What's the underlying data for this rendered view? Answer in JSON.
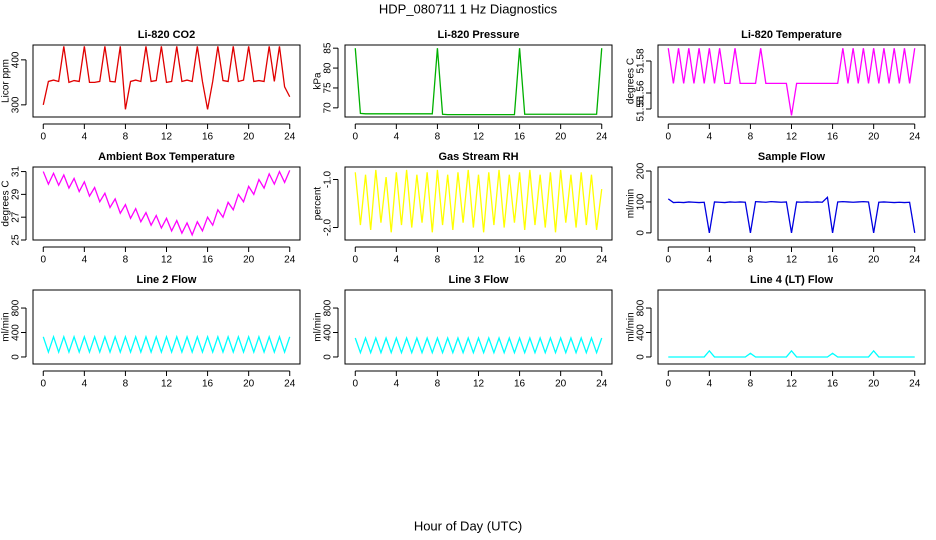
{
  "title": "HDP_080711  1 Hz Diagnostics",
  "x_label": "Hour of Day (UTC)",
  "chart_data": [
    {
      "type": "line",
      "title": "Li-820 CO2",
      "y_label": "Licor ppm",
      "x": [
        0,
        0.5,
        1,
        1.5,
        2,
        2.5,
        3,
        3.5,
        4,
        4.5,
        5,
        5.5,
        6,
        6.5,
        7,
        7.5,
        8,
        8.5,
        9,
        9.5,
        10,
        10.5,
        11,
        11.5,
        12,
        12.5,
        13,
        13.5,
        14,
        14.5,
        15,
        15.5,
        16,
        16.5,
        17,
        17.5,
        18,
        18.5,
        19,
        19.5,
        20,
        20.5,
        21,
        21.5,
        22,
        22.5,
        23,
        23.5,
        24
      ],
      "series": [
        {
          "color": "#e00000",
          "values": [
            300,
            352,
            355,
            352,
            430,
            350,
            354,
            352,
            430,
            350,
            350,
            352,
            430,
            352,
            351,
            430,
            290,
            352,
            355,
            352,
            430,
            352,
            354,
            430,
            350,
            352,
            430,
            352,
            355,
            352,
            430,
            352,
            290,
            352,
            430,
            354,
            352,
            430,
            352,
            355,
            430,
            352,
            354,
            352,
            430,
            352,
            430,
            340,
            318
          ]
        }
      ],
      "xlim": [
        -1,
        25
      ],
      "xticks": [
        0,
        4,
        8,
        12,
        16,
        20,
        24
      ],
      "ylim": [
        273,
        433
      ],
      "yticks": [
        300,
        400
      ]
    },
    {
      "type": "line",
      "title": "Li-820 Pressure",
      "y_label": "kPa",
      "x": [
        0,
        0.5,
        1,
        1.5,
        2,
        2.5,
        3,
        3.5,
        4,
        4.5,
        5,
        5.5,
        6,
        6.5,
        7,
        7.5,
        8,
        8.5,
        9,
        9.5,
        10,
        10.5,
        11,
        11.5,
        12,
        12.5,
        13,
        13.5,
        14,
        14.5,
        15,
        15.5,
        16,
        16.5,
        17,
        17.5,
        18,
        18.5,
        19,
        19.5,
        20,
        20.5,
        21,
        21.5,
        22,
        22.5,
        23,
        23.5,
        24
      ],
      "series": [
        {
          "color": "#00b000",
          "values": [
            85,
            68.6,
            68.5,
            68.5,
            68.5,
            68.5,
            68.5,
            68.5,
            68.5,
            68.5,
            68.5,
            68.5,
            68.5,
            68.5,
            68.5,
            68.5,
            85,
            68.4,
            68.3,
            68.3,
            68.3,
            68.3,
            68.3,
            68.3,
            68.3,
            68.3,
            68.3,
            68.3,
            68.3,
            68.3,
            68.3,
            68.3,
            85,
            68.4,
            68.4,
            68.4,
            68.4,
            68.4,
            68.4,
            68.4,
            68.4,
            68.4,
            68.4,
            68.4,
            68.4,
            68.4,
            68.4,
            68.4,
            85
          ]
        }
      ],
      "xlim": [
        -1,
        25
      ],
      "xticks": [
        0,
        4,
        8,
        12,
        16,
        20,
        24
      ],
      "ylim": [
        67.7,
        85.8
      ],
      "yticks": [
        70,
        75,
        80,
        85
      ]
    },
    {
      "type": "line",
      "title": "Li-820 Temperature",
      "y_label": "degrees C",
      "x": [
        0,
        0.5,
        1,
        1.5,
        2,
        2.5,
        3,
        3.5,
        4,
        4.5,
        5,
        5.5,
        6,
        6.5,
        7,
        7.5,
        8,
        8.5,
        9,
        9.5,
        10,
        10.5,
        11,
        11.5,
        12,
        12.5,
        13,
        13.5,
        14,
        14.5,
        15,
        15.5,
        16,
        16.5,
        17,
        17.5,
        18,
        18.5,
        19,
        19.5,
        20,
        20.5,
        21,
        21.5,
        22,
        22.5,
        23,
        23.5,
        24
      ],
      "series": [
        {
          "color": "#ff00ff",
          "values": [
            51.588,
            51.566,
            51.588,
            51.566,
            51.588,
            51.566,
            51.588,
            51.566,
            51.588,
            51.566,
            51.588,
            51.566,
            51.566,
            51.588,
            51.566,
            51.566,
            51.566,
            51.566,
            51.588,
            51.566,
            51.566,
            51.566,
            51.566,
            51.566,
            51.546,
            51.566,
            51.566,
            51.566,
            51.566,
            51.566,
            51.566,
            51.566,
            51.566,
            51.566,
            51.588,
            51.566,
            51.588,
            51.566,
            51.588,
            51.566,
            51.588,
            51.566,
            51.588,
            51.566,
            51.588,
            51.566,
            51.588,
            51.566,
            51.588
          ]
        }
      ],
      "xlim": [
        -1,
        25
      ],
      "xticks": [
        0,
        4,
        8,
        12,
        16,
        20,
        24
      ],
      "ylim": [
        51.545,
        51.59
      ],
      "yticks": [
        51.55,
        51.56,
        51.58
      ]
    },
    {
      "type": "line",
      "title": "Ambient Box Temperature",
      "y_label": "degrees C",
      "x": [
        0,
        0.5,
        1,
        1.5,
        2,
        2.5,
        3,
        3.5,
        4,
        4.5,
        5,
        5.5,
        6,
        6.5,
        7,
        7.5,
        8,
        8.5,
        9,
        9.5,
        10,
        10.5,
        11,
        11.5,
        12,
        12.5,
        13,
        13.5,
        14,
        14.5,
        15,
        15.5,
        16,
        16.5,
        17,
        17.5,
        18,
        18.5,
        19,
        19.5,
        20,
        20.5,
        21,
        21.5,
        22,
        22.5,
        23,
        23.5,
        24
      ],
      "series": [
        {
          "color": "#ff00ff",
          "values": [
            31.0,
            29.9,
            30.85,
            29.8,
            30.7,
            29.55,
            30.4,
            29.25,
            30.1,
            28.85,
            29.6,
            28.35,
            29.1,
            27.85,
            28.6,
            27.35,
            28.1,
            26.9,
            27.75,
            26.6,
            27.4,
            26.3,
            27.15,
            26.05,
            26.9,
            25.8,
            26.7,
            25.6,
            26.5,
            25.45,
            26.6,
            25.8,
            27.0,
            26.3,
            27.65,
            27.0,
            28.3,
            27.65,
            29.0,
            28.35,
            29.7,
            29.0,
            30.3,
            29.55,
            30.8,
            29.9,
            31.0,
            30.05,
            31.1
          ]
        }
      ],
      "xlim": [
        -1,
        25
      ],
      "xticks": [
        0,
        4,
        8,
        12,
        16,
        20,
        24
      ],
      "ylim": [
        25.0,
        31.4
      ],
      "yticks": [
        25,
        27,
        29,
        31
      ]
    },
    {
      "type": "line",
      "title": "Gas Stream RH",
      "y_label": "percent",
      "x": [
        0,
        0.5,
        1,
        1.5,
        2,
        2.5,
        3,
        3.5,
        4,
        4.5,
        5,
        5.5,
        6,
        6.5,
        7,
        7.5,
        8,
        8.5,
        9,
        9.5,
        10,
        10.5,
        11,
        11.5,
        12,
        12.5,
        13,
        13.5,
        14,
        14.5,
        15,
        15.5,
        16,
        16.5,
        17,
        17.5,
        18,
        18.5,
        19,
        19.5,
        20,
        20.5,
        21,
        21.5,
        22,
        22.5,
        23,
        23.5,
        24
      ],
      "series": [
        {
          "color": "#ffff00",
          "values": [
            -0.85,
            -1.95,
            -0.9,
            -2.05,
            -0.8,
            -1.9,
            -0.95,
            -2.1,
            -0.85,
            -1.95,
            -0.8,
            -2.0,
            -0.9,
            -1.9,
            -0.85,
            -2.1,
            -0.8,
            -1.95,
            -0.9,
            -2.05,
            -0.85,
            -1.9,
            -0.8,
            -2.0,
            -0.9,
            -2.1,
            -0.85,
            -1.95,
            -0.8,
            -2.0,
            -0.9,
            -1.9,
            -0.85,
            -2.05,
            -0.8,
            -1.95,
            -0.9,
            -2.0,
            -0.85,
            -2.1,
            -0.8,
            -1.9,
            -0.9,
            -2.0,
            -0.85,
            -1.95,
            -0.9,
            -2.05,
            -1.2
          ]
        }
      ],
      "xlim": [
        -1,
        25
      ],
      "xticks": [
        0,
        4,
        8,
        12,
        16,
        20,
        24
      ],
      "ylim": [
        -2.26,
        -0.74
      ],
      "yticks": [
        {
          "value": -2,
          "label": "-2.0"
        },
        {
          "value": -1,
          "label": "-1.0"
        }
      ]
    },
    {
      "type": "line",
      "title": "Sample Flow",
      "y_label": "ml/min",
      "x": [
        0,
        0.5,
        1,
        1.5,
        2,
        2.5,
        3,
        3.5,
        4,
        4.5,
        5,
        5.5,
        6,
        6.5,
        7,
        7.5,
        8,
        8.5,
        9,
        9.5,
        10,
        10.5,
        11,
        11.5,
        12,
        12.5,
        13,
        13.5,
        14,
        14.5,
        15,
        15.5,
        16,
        16.5,
        17,
        17.5,
        18,
        18.5,
        19,
        19.5,
        20,
        20.5,
        21,
        21.5,
        22,
        22.5,
        23,
        23.5,
        24
      ],
      "series": [
        {
          "color": "#0000e0",
          "values": [
            110,
            98,
            99,
            98,
            100,
            99,
            98,
            99,
            0,
            100,
            99,
            98,
            100,
            99,
            100,
            99,
            0,
            101,
            100,
            99,
            101,
            100,
            99,
            100,
            0,
            100,
            99,
            100,
            99,
            100,
            99,
            115,
            0,
            100,
            101,
            100,
            99,
            100,
            101,
            100,
            0,
            99,
            100,
            99,
            98,
            99,
            98,
            99,
            0
          ]
        }
      ],
      "xlim": [
        -1,
        25
      ],
      "xticks": [
        0,
        4,
        8,
        12,
        16,
        20,
        24
      ],
      "ylim": [
        -23,
        213
      ],
      "yticks": [
        0,
        100,
        200
      ]
    },
    {
      "type": "line",
      "title": "Line 2 Flow",
      "y_label": "ml/min",
      "x": [
        0,
        0.5,
        1,
        1.5,
        2,
        2.5,
        3,
        3.5,
        4,
        4.5,
        5,
        5.5,
        6,
        6.5,
        7,
        7.5,
        8,
        8.5,
        9,
        9.5,
        10,
        10.5,
        11,
        11.5,
        12,
        12.5,
        13,
        13.5,
        14,
        14.5,
        15,
        15.5,
        16,
        16.5,
        17,
        17.5,
        18,
        18.5,
        19,
        19.5,
        20,
        20.5,
        21,
        21.5,
        22,
        22.5,
        23,
        23.5,
        24
      ],
      "series": [
        {
          "color": "#00ffff",
          "values": [
            330,
            80,
            330,
            80,
            330,
            80,
            330,
            80,
            330,
            80,
            330,
            80,
            330,
            80,
            330,
            80,
            330,
            80,
            330,
            80,
            330,
            80,
            330,
            80,
            330,
            80,
            330,
            80,
            330,
            80,
            330,
            80,
            330,
            80,
            330,
            80,
            330,
            80,
            330,
            80,
            330,
            80,
            330,
            80,
            330,
            80,
            330,
            80,
            330
          ]
        }
      ],
      "xlim": [
        -1,
        25
      ],
      "xticks": [
        0,
        4,
        8,
        12,
        16,
        20,
        24
      ],
      "ylim": [
        -115,
        1095
      ],
      "yticks": [
        0,
        400,
        800
      ]
    },
    {
      "type": "line",
      "title": "Line 3 Flow",
      "y_label": "ml/min",
      "x": [
        0,
        0.5,
        1,
        1.5,
        2,
        2.5,
        3,
        3.5,
        4,
        4.5,
        5,
        5.5,
        6,
        6.5,
        7,
        7.5,
        8,
        8.5,
        9,
        9.5,
        10,
        10.5,
        11,
        11.5,
        12,
        12.5,
        13,
        13.5,
        14,
        14.5,
        15,
        15.5,
        16,
        16.5,
        17,
        17.5,
        18,
        18.5,
        19,
        19.5,
        20,
        20.5,
        21,
        21.5,
        22,
        22.5,
        23,
        23.5,
        24
      ],
      "series": [
        {
          "color": "#00ffff",
          "values": [
            310,
            70,
            310,
            70,
            310,
            70,
            310,
            70,
            310,
            70,
            310,
            70,
            310,
            70,
            310,
            70,
            310,
            70,
            310,
            70,
            310,
            70,
            310,
            70,
            310,
            70,
            310,
            70,
            310,
            70,
            310,
            70,
            310,
            70,
            310,
            70,
            310,
            70,
            310,
            70,
            310,
            70,
            310,
            70,
            310,
            70,
            310,
            70,
            310
          ]
        }
      ],
      "xlim": [
        -1,
        25
      ],
      "xticks": [
        0,
        4,
        8,
        12,
        16,
        20,
        24
      ],
      "ylim": [
        -115,
        1095
      ],
      "yticks": [
        0,
        400,
        800
      ]
    },
    {
      "type": "line",
      "title": "Line 4 (LT) Flow",
      "y_label": "ml/min",
      "x": [
        0,
        0.5,
        1,
        1.5,
        2,
        2.5,
        3,
        3.5,
        4,
        4.5,
        5,
        5.5,
        6,
        6.5,
        7,
        7.5,
        8,
        8.5,
        9,
        9.5,
        10,
        10.5,
        11,
        11.5,
        12,
        12.5,
        13,
        13.5,
        14,
        14.5,
        15,
        15.5,
        16,
        16.5,
        17,
        17.5,
        18,
        18.5,
        19,
        19.5,
        20,
        20.5,
        21,
        21.5,
        22,
        22.5,
        23,
        23.5,
        24
      ],
      "series": [
        {
          "color": "#00ffff",
          "values": [
            0,
            0,
            0,
            0,
            0,
            0,
            0,
            0,
            100,
            0,
            0,
            0,
            0,
            0,
            0,
            0,
            60,
            0,
            0,
            0,
            0,
            0,
            0,
            0,
            100,
            0,
            0,
            0,
            0,
            0,
            0,
            0,
            60,
            0,
            0,
            0,
            0,
            0,
            0,
            0,
            100,
            0,
            0,
            0,
            0,
            0,
            0,
            0,
            0
          ]
        }
      ],
      "xlim": [
        -1,
        25
      ],
      "xticks": [
        0,
        4,
        8,
        12,
        16,
        20,
        24
      ],
      "ylim": [
        -115,
        1095
      ],
      "yticks": [
        0,
        400,
        800
      ]
    }
  ]
}
